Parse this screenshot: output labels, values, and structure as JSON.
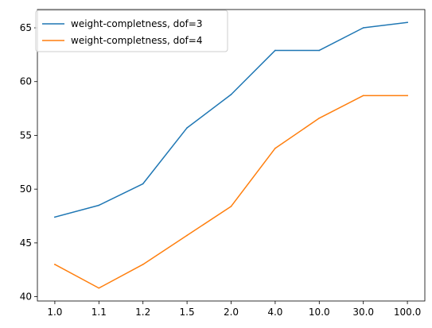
{
  "chart_data": {
    "type": "line",
    "x": [
      "1.0",
      "1.1",
      "1.2",
      "1.5",
      "2.0",
      "4.0",
      "10.0",
      "30.0",
      "100.0"
    ],
    "series": [
      {
        "name": "weight-completness, dof=3",
        "color": "#1f77b4",
        "values": [
          47.4,
          48.5,
          50.5,
          55.7,
          58.8,
          62.9,
          62.9,
          65.0,
          65.5
        ]
      },
      {
        "name": "weight-completness, dof=4",
        "color": "#ff7f0e",
        "values": [
          43.0,
          40.8,
          43.0,
          45.7,
          48.4,
          53.8,
          56.6,
          58.7,
          58.7
        ]
      }
    ],
    "yticks": [
      40,
      45,
      50,
      55,
      60,
      65
    ],
    "ylim": [
      39.6,
      66.7
    ],
    "grid": false,
    "legend_position": "top-left"
  }
}
